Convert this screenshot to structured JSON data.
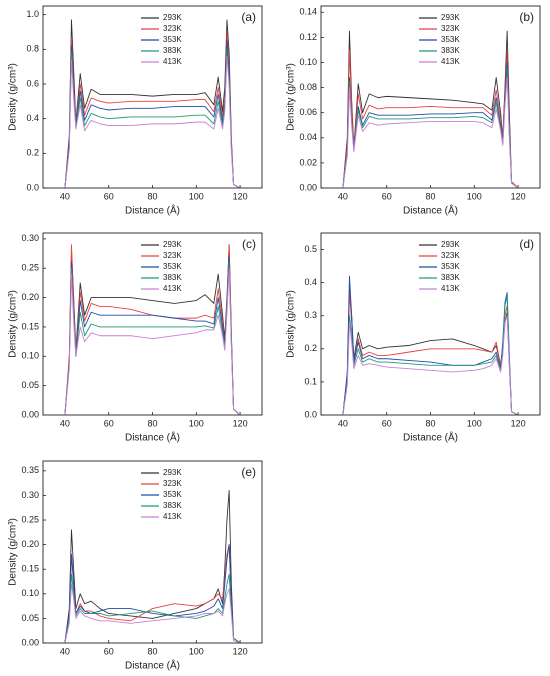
{
  "chart_data": [
    {
      "type": "line",
      "annotation": "(a)",
      "xlabel": "Distance (Å)",
      "ylabel": "Density (g/cm³)",
      "x": [
        40,
        42,
        43,
        44,
        45,
        47,
        49,
        52,
        56,
        60,
        70,
        80,
        90,
        100,
        104,
        108,
        110,
        112,
        113,
        114,
        115,
        116,
        117,
        120
      ],
      "xlim": [
        30,
        130
      ],
      "xticks": [
        40,
        60,
        80,
        100,
        120
      ],
      "ylim": [
        0,
        1.05
      ],
      "yticks": [
        {
          "value": 0,
          "label": "0.0"
        },
        {
          "value": 0.2,
          "label": "0.2"
        },
        {
          "value": 0.4,
          "label": "0.4"
        },
        {
          "value": 0.6,
          "label": "0.6"
        },
        {
          "value": 0.8,
          "label": "0.8"
        },
        {
          "value": 1,
          "label": "1.0"
        }
      ],
      "series": [
        {
          "name": "293K",
          "color": "#333333",
          "values": [
            0,
            0.3,
            0.97,
            0.68,
            0.38,
            0.66,
            0.46,
            0.57,
            0.54,
            0.54,
            0.54,
            0.53,
            0.54,
            0.54,
            0.55,
            0.48,
            0.64,
            0.44,
            0.58,
            0.97,
            0.78,
            0.29,
            0.02,
            0
          ]
        },
        {
          "name": "323K",
          "color": "#e8413c",
          "values": [
            0,
            0.26,
            0.86,
            0.6,
            0.37,
            0.6,
            0.42,
            0.52,
            0.5,
            0.49,
            0.5,
            0.5,
            0.5,
            0.51,
            0.51,
            0.44,
            0.58,
            0.41,
            0.52,
            0.9,
            0.69,
            0.26,
            0.02,
            0
          ]
        },
        {
          "name": "353K",
          "color": "#1f4ea8",
          "values": [
            0,
            0.25,
            0.82,
            0.57,
            0.36,
            0.56,
            0.39,
            0.48,
            0.46,
            0.45,
            0.46,
            0.46,
            0.47,
            0.47,
            0.47,
            0.41,
            0.54,
            0.38,
            0.49,
            0.85,
            0.66,
            0.25,
            0.02,
            0
          ]
        },
        {
          "name": "383K",
          "color": "#1a9a7a",
          "values": [
            0,
            0.23,
            0.78,
            0.55,
            0.35,
            0.52,
            0.36,
            0.43,
            0.41,
            0.4,
            0.41,
            0.41,
            0.41,
            0.42,
            0.42,
            0.37,
            0.5,
            0.36,
            0.47,
            0.8,
            0.62,
            0.23,
            0.02,
            0
          ]
        },
        {
          "name": "413K",
          "color": "#c77fd6",
          "values": [
            0,
            0.22,
            0.74,
            0.52,
            0.34,
            0.48,
            0.33,
            0.39,
            0.37,
            0.36,
            0.36,
            0.37,
            0.37,
            0.38,
            0.38,
            0.34,
            0.46,
            0.34,
            0.44,
            0.76,
            0.59,
            0.22,
            0.02,
            0
          ]
        }
      ]
    },
    {
      "type": "line",
      "annotation": "(b)",
      "xlabel": "Distance (Å)",
      "ylabel": "Density (g/cm³)",
      "x": [
        40,
        42,
        43,
        44,
        45,
        47,
        49,
        52,
        56,
        60,
        70,
        80,
        90,
        100,
        104,
        108,
        110,
        112,
        113,
        114,
        115,
        116,
        117,
        120
      ],
      "xlim": [
        30,
        130
      ],
      "xticks": [
        40,
        60,
        80,
        100,
        120
      ],
      "ylim": [
        0,
        0.145
      ],
      "yticks": [
        {
          "value": 0,
          "label": "0.00"
        },
        {
          "value": 0.02,
          "label": "0.02"
        },
        {
          "value": 0.04,
          "label": "0.04"
        },
        {
          "value": 0.06,
          "label": "0.06"
        },
        {
          "value": 0.08,
          "label": "0.08"
        },
        {
          "value": 0.1,
          "label": "0.10"
        },
        {
          "value": 0.12,
          "label": "0.12"
        },
        {
          "value": 0.14,
          "label": "0.14"
        }
      ],
      "series": [
        {
          "name": "293K",
          "color": "#333333",
          "values": [
            0,
            0.04,
            0.125,
            0.07,
            0.032,
            0.083,
            0.06,
            0.075,
            0.072,
            0.073,
            0.072,
            0.071,
            0.07,
            0.068,
            0.067,
            0.062,
            0.088,
            0.06,
            0.04,
            0.08,
            0.125,
            0.06,
            0.005,
            0
          ]
        },
        {
          "name": "323K",
          "color": "#e8413c",
          "values": [
            0,
            0.035,
            0.11,
            0.065,
            0.031,
            0.075,
            0.055,
            0.066,
            0.063,
            0.064,
            0.064,
            0.065,
            0.064,
            0.064,
            0.064,
            0.058,
            0.078,
            0.055,
            0.038,
            0.075,
            0.108,
            0.05,
            0.005,
            0
          ]
        },
        {
          "name": "353K",
          "color": "#1f4ea8",
          "values": [
            0,
            0.03,
            0.088,
            0.055,
            0.03,
            0.065,
            0.05,
            0.06,
            0.058,
            0.058,
            0.058,
            0.059,
            0.059,
            0.06,
            0.06,
            0.054,
            0.072,
            0.05,
            0.036,
            0.07,
            0.1,
            0.045,
            0.004,
            0
          ]
        },
        {
          "name": "383K",
          "color": "#1a9a7a",
          "values": [
            0,
            0.028,
            0.085,
            0.052,
            0.03,
            0.062,
            0.048,
            0.057,
            0.055,
            0.055,
            0.055,
            0.056,
            0.056,
            0.057,
            0.056,
            0.052,
            0.068,
            0.048,
            0.035,
            0.068,
            0.095,
            0.043,
            0.004,
            0
          ]
        },
        {
          "name": "413K",
          "color": "#c77fd6",
          "values": [
            0,
            0.026,
            0.08,
            0.05,
            0.029,
            0.058,
            0.045,
            0.052,
            0.05,
            0.051,
            0.052,
            0.053,
            0.053,
            0.053,
            0.052,
            0.048,
            0.063,
            0.046,
            0.034,
            0.065,
            0.088,
            0.04,
            0.004,
            0
          ]
        }
      ]
    },
    {
      "type": "line",
      "annotation": "(c)",
      "xlabel": "Distance (Å)",
      "ylabel": "Density (g/cm³)",
      "x": [
        40,
        42,
        43,
        44,
        45,
        47,
        49,
        52,
        56,
        60,
        70,
        80,
        90,
        100,
        104,
        108,
        110,
        112,
        113,
        114,
        115,
        116,
        117,
        120
      ],
      "xlim": [
        30,
        130
      ],
      "xticks": [
        40,
        60,
        80,
        100,
        120
      ],
      "ylim": [
        0,
        0.31
      ],
      "yticks": [
        {
          "value": 0,
          "label": "0.00"
        },
        {
          "value": 0.05,
          "label": "0.05"
        },
        {
          "value": 0.1,
          "label": "0.10"
        },
        {
          "value": 0.15,
          "label": "0.15"
        },
        {
          "value": 0.2,
          "label": "0.20"
        },
        {
          "value": 0.25,
          "label": "0.25"
        },
        {
          "value": 0.3,
          "label": "0.30"
        }
      ],
      "series": [
        {
          "name": "293K",
          "color": "#333333",
          "values": [
            0,
            0.09,
            0.28,
            0.2,
            0.11,
            0.225,
            0.17,
            0.2,
            0.2,
            0.2,
            0.2,
            0.195,
            0.19,
            0.195,
            0.205,
            0.19,
            0.24,
            0.17,
            0.13,
            0.2,
            0.29,
            0.14,
            0.01,
            0
          ]
        },
        {
          "name": "323K",
          "color": "#e8413c",
          "values": [
            0,
            0.1,
            0.29,
            0.2,
            0.105,
            0.21,
            0.16,
            0.19,
            0.185,
            0.185,
            0.18,
            0.17,
            0.165,
            0.165,
            0.17,
            0.165,
            0.215,
            0.16,
            0.12,
            0.19,
            0.29,
            0.14,
            0.01,
            0
          ]
        },
        {
          "name": "353K",
          "color": "#1f4ea8",
          "values": [
            0,
            0.09,
            0.26,
            0.18,
            0.1,
            0.195,
            0.15,
            0.175,
            0.17,
            0.17,
            0.17,
            0.17,
            0.165,
            0.16,
            0.16,
            0.155,
            0.2,
            0.15,
            0.12,
            0.185,
            0.27,
            0.13,
            0.01,
            0
          ]
        },
        {
          "name": "383K",
          "color": "#1a9a7a",
          "values": [
            0,
            0.085,
            0.25,
            0.17,
            0.1,
            0.175,
            0.135,
            0.155,
            0.15,
            0.15,
            0.15,
            0.15,
            0.15,
            0.15,
            0.152,
            0.148,
            0.185,
            0.14,
            0.115,
            0.18,
            0.26,
            0.12,
            0.01,
            0
          ]
        },
        {
          "name": "413K",
          "color": "#c77fd6",
          "values": [
            0,
            0.08,
            0.24,
            0.16,
            0.1,
            0.15,
            0.125,
            0.14,
            0.135,
            0.135,
            0.135,
            0.13,
            0.135,
            0.14,
            0.145,
            0.145,
            0.17,
            0.135,
            0.11,
            0.175,
            0.25,
            0.12,
            0.01,
            0
          ]
        }
      ]
    },
    {
      "type": "line",
      "annotation": "(d)",
      "xlabel": "Distance (Å)",
      "ylabel": "Density (g/cm³)",
      "x": [
        40,
        42,
        43,
        44,
        45,
        47,
        49,
        52,
        56,
        60,
        70,
        80,
        90,
        100,
        104,
        108,
        110,
        112,
        113,
        114,
        115,
        116,
        117,
        120
      ],
      "xlim": [
        30,
        130
      ],
      "xticks": [
        40,
        60,
        80,
        100,
        120
      ],
      "ylim": [
        0,
        0.55
      ],
      "yticks": [
        {
          "value": 0,
          "label": "0.0"
        },
        0.1,
        0.2,
        0.3,
        0.4,
        0.5
      ],
      "series": [
        {
          "name": "293K",
          "color": "#333333",
          "values": [
            0,
            0.12,
            0.38,
            0.3,
            0.17,
            0.25,
            0.2,
            0.21,
            0.2,
            0.205,
            0.21,
            0.225,
            0.23,
            0.21,
            0.2,
            0.19,
            0.21,
            0.15,
            0.2,
            0.28,
            0.31,
            0.15,
            0.01,
            0
          ]
        },
        {
          "name": "323K",
          "color": "#e8413c",
          "values": [
            0,
            0.12,
            0.37,
            0.28,
            0.16,
            0.23,
            0.18,
            0.19,
            0.18,
            0.18,
            0.19,
            0.2,
            0.2,
            0.2,
            0.195,
            0.19,
            0.22,
            0.15,
            0.21,
            0.3,
            0.33,
            0.16,
            0.01,
            0
          ]
        },
        {
          "name": "353K",
          "color": "#1f4ea8",
          "values": [
            0,
            0.13,
            0.42,
            0.3,
            0.16,
            0.22,
            0.17,
            0.18,
            0.17,
            0.17,
            0.165,
            0.16,
            0.15,
            0.15,
            0.16,
            0.17,
            0.19,
            0.14,
            0.22,
            0.34,
            0.37,
            0.18,
            0.01,
            0
          ]
        },
        {
          "name": "383K",
          "color": "#1a9a7a",
          "values": [
            0,
            0.1,
            0.3,
            0.24,
            0.15,
            0.2,
            0.16,
            0.17,
            0.16,
            0.16,
            0.155,
            0.15,
            0.15,
            0.15,
            0.155,
            0.16,
            0.18,
            0.13,
            0.2,
            0.33,
            0.36,
            0.17,
            0.01,
            0
          ]
        },
        {
          "name": "413K",
          "color": "#c77fd6",
          "values": [
            0,
            0.09,
            0.28,
            0.22,
            0.14,
            0.18,
            0.15,
            0.155,
            0.15,
            0.145,
            0.14,
            0.135,
            0.13,
            0.135,
            0.14,
            0.15,
            0.17,
            0.13,
            0.18,
            0.28,
            0.3,
            0.15,
            0.01,
            0
          ]
        }
      ]
    },
    {
      "type": "line",
      "annotation": "(e)",
      "xlabel": "Distance (Å)",
      "ylabel": "Density (g/cm³)",
      "x": [
        40,
        42,
        43,
        44,
        45,
        47,
        49,
        52,
        56,
        60,
        70,
        80,
        90,
        100,
        104,
        108,
        110,
        112,
        113,
        114,
        115,
        116,
        117,
        120
      ],
      "xlim": [
        30,
        130
      ],
      "xticks": [
        40,
        60,
        80,
        100,
        120
      ],
      "ylim": [
        0,
        0.37
      ],
      "yticks": [
        {
          "value": 0,
          "label": "0.00"
        },
        {
          "value": 0.05,
          "label": "0.05"
        },
        {
          "value": 0.1,
          "label": "0.10"
        },
        {
          "value": 0.15,
          "label": "0.15"
        },
        {
          "value": 0.2,
          "label": "0.20"
        },
        {
          "value": 0.25,
          "label": "0.25"
        },
        {
          "value": 0.3,
          "label": "0.30"
        },
        {
          "value": 0.35,
          "label": "0.35"
        }
      ],
      "series": [
        {
          "name": "293K",
          "color": "#333333",
          "values": [
            0,
            0.07,
            0.23,
            0.15,
            0.07,
            0.1,
            0.08,
            0.085,
            0.07,
            0.06,
            0.055,
            0.05,
            0.06,
            0.07,
            0.08,
            0.09,
            0.11,
            0.08,
            0.15,
            0.25,
            0.31,
            0.12,
            0.01,
            0
          ]
        },
        {
          "name": "323K",
          "color": "#e8413c",
          "values": [
            0,
            0.06,
            0.18,
            0.12,
            0.06,
            0.08,
            0.065,
            0.065,
            0.055,
            0.05,
            0.045,
            0.07,
            0.08,
            0.075,
            0.08,
            0.09,
            0.1,
            0.09,
            0.13,
            0.18,
            0.2,
            0.09,
            0.01,
            0
          ]
        },
        {
          "name": "353K",
          "color": "#1f4ea8",
          "values": [
            0,
            0.06,
            0.18,
            0.12,
            0.06,
            0.075,
            0.065,
            0.06,
            0.065,
            0.07,
            0.07,
            0.06,
            0.055,
            0.06,
            0.065,
            0.075,
            0.09,
            0.07,
            0.12,
            0.17,
            0.2,
            0.09,
            0.01,
            0
          ]
        },
        {
          "name": "383K",
          "color": "#1a9a7a",
          "values": [
            0,
            0.05,
            0.14,
            0.1,
            0.055,
            0.07,
            0.06,
            0.06,
            0.06,
            0.055,
            0.06,
            0.065,
            0.055,
            0.05,
            0.055,
            0.06,
            0.07,
            0.06,
            0.09,
            0.12,
            0.14,
            0.07,
            0.01,
            0
          ]
        },
        {
          "name": "413K",
          "color": "#c77fd6",
          "values": [
            0,
            0.04,
            0.12,
            0.09,
            0.05,
            0.065,
            0.055,
            0.05,
            0.045,
            0.045,
            0.04,
            0.045,
            0.05,
            0.055,
            0.06,
            0.06,
            0.065,
            0.055,
            0.08,
            0.1,
            0.11,
            0.06,
            0.005,
            0
          ]
        }
      ]
    }
  ]
}
